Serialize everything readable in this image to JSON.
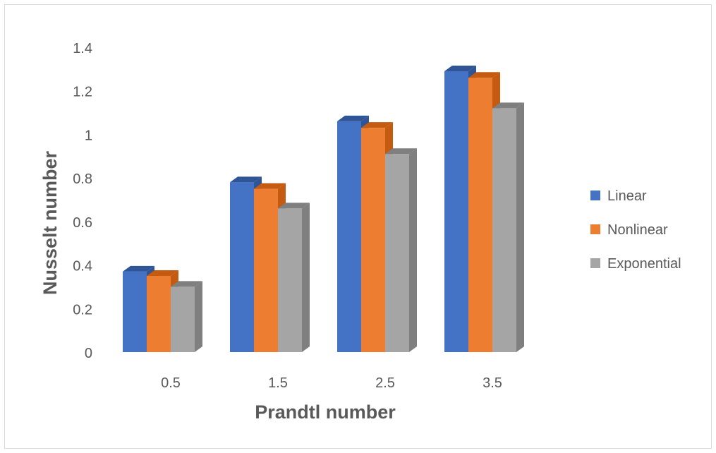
{
  "chart_data": {
    "type": "bar",
    "title": "",
    "xlabel": "Prandtl number",
    "ylabel": "Nusselt number",
    "categories": [
      "0.5",
      "1.5",
      "2.5",
      "3.5"
    ],
    "ylim": [
      0,
      1.4
    ],
    "yticks": [
      "0",
      "0.2",
      "0.4",
      "0.6",
      "0.8",
      "1",
      "1.2",
      "1.4"
    ],
    "grid": false,
    "legend_position": "right",
    "series": [
      {
        "name": "Linear",
        "color": "#4472C4",
        "side_color": "#2F5597",
        "values": [
          0.37,
          0.78,
          1.06,
          1.29
        ]
      },
      {
        "name": "Nonlinear",
        "color": "#ED7D31",
        "side_color": "#C55A11",
        "values": [
          0.35,
          0.75,
          1.03,
          1.26
        ]
      },
      {
        "name": "Exponential",
        "color": "#A5A5A5",
        "side_color": "#7F7F7F",
        "values": [
          0.3,
          0.66,
          0.91,
          1.12
        ]
      }
    ]
  }
}
